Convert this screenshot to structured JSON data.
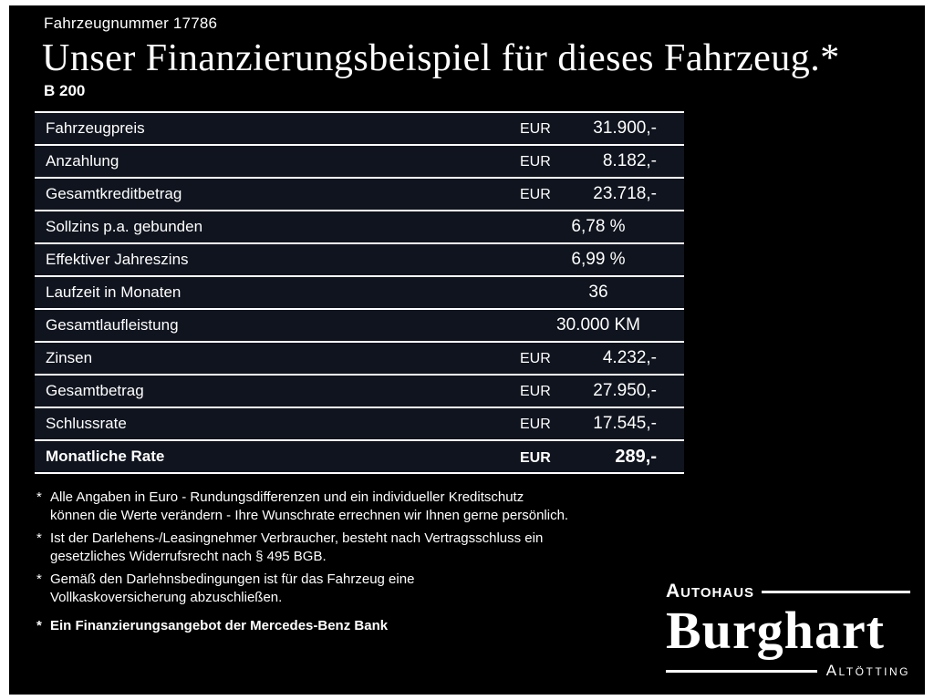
{
  "header": {
    "vehicle_number": "Fahrzeugnummer 17786",
    "title": "Unser Finanzierungsbeispiel für dieses Fahrzeug.*",
    "model": "B 200"
  },
  "table": {
    "rows": [
      {
        "label": "Fahrzeugpreis",
        "currency": "EUR",
        "value": "31.900,-",
        "bold": false
      },
      {
        "label": "Anzahlung",
        "currency": "EUR",
        "value": "8.182,-",
        "bold": false
      },
      {
        "label": "Gesamtkreditbetrag",
        "currency": "EUR",
        "value": "23.718,-",
        "bold": false
      },
      {
        "label": "Sollzins p.a. gebunden",
        "currency": "",
        "value": "6,78 %",
        "bold": false
      },
      {
        "label": "Effektiver Jahreszins",
        "currency": "",
        "value": "6,99 %",
        "bold": false
      },
      {
        "label": "Laufzeit in Monaten",
        "currency": "",
        "value": "36",
        "bold": false
      },
      {
        "label": "Gesamtlaufleistung",
        "currency": "",
        "value": "30.000 KM",
        "bold": false
      },
      {
        "label": "Zinsen",
        "currency": "EUR",
        "value": "4.232,-",
        "bold": false
      },
      {
        "label": "Gesamtbetrag",
        "currency": "EUR",
        "value": "27.950,-",
        "bold": false
      },
      {
        "label": "Schlussrate",
        "currency": "EUR",
        "value": "17.545,-",
        "bold": false
      },
      {
        "label": "Monatliche Rate",
        "currency": "EUR",
        "value": "289,-",
        "bold": true
      }
    ]
  },
  "footnotes": [
    {
      "marker": "*",
      "lines": [
        "Alle Angaben in Euro - Rundungsdifferenzen und ein individueller Kreditschutz",
        "können die Werte verändern - Ihre Wunschrate errechnen wir Ihnen gerne persönlich."
      ]
    },
    {
      "marker": "*",
      "lines": [
        "Ist der Darlehens-/Leasingnehmer Verbraucher, besteht nach Vertragsschluss ein",
        "gesetzliches Widerrufsrecht nach § 495 BGB."
      ]
    },
    {
      "marker": "*",
      "lines": [
        "Gemäß den Darlehnsbedingungen ist für das Fahrzeug eine",
        "Vollkaskoversicherung abzuschließen."
      ]
    }
  ],
  "bank_note": {
    "marker": "*",
    "text": "Ein Finanzierungsangebot der Mercedes-Benz Bank"
  },
  "logo": {
    "top": "Autohaus",
    "name": "Burghart",
    "city": "Altötting"
  },
  "colors": {
    "background": "#000000",
    "text": "#ffffff",
    "row_background": "#10141e",
    "divider": "#ffffff"
  }
}
